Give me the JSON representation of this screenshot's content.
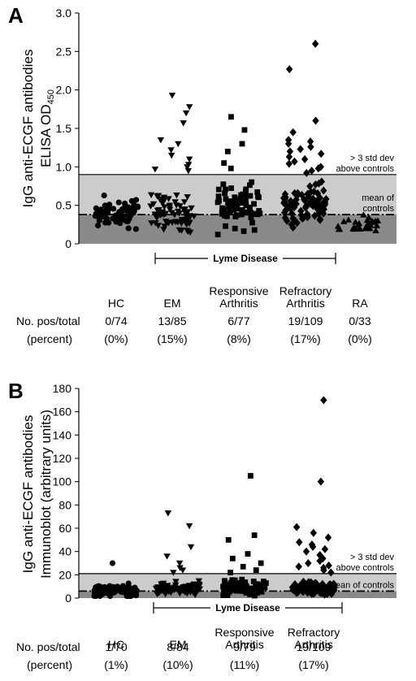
{
  "chart_data": [
    {
      "type": "scatter",
      "panel": "A",
      "ylabel": "IgG anti-ECGF antibodies",
      "ylabel2": "ELISA OD",
      "ylabel2_sub": "450",
      "ylim": [
        0,
        3.0
      ],
      "yticks": [
        "0",
        "0.5",
        "1.0",
        "1.5",
        "2.0",
        "2.5",
        "3.0"
      ],
      "ytick_values": [
        0,
        0.5,
        1.0,
        1.5,
        2.0,
        2.5,
        3.0
      ],
      "threshold": 0.9,
      "mean": 0.38,
      "threshold_label": [
        "> 3 std dev",
        "above controls"
      ],
      "mean_label": [
        "mean of",
        "controls"
      ],
      "group_bracket_label": "Lyme Disease",
      "row_labels": [
        "No. pos/total",
        "(percent)"
      ],
      "groups": [
        {
          "name": [
            "HC"
          ],
          "marker": "circle",
          "pos_total": "0/74",
          "percent": "(0%)",
          "n": 74,
          "center": 0.39,
          "spread": 0.2,
          "max": 0.86,
          "outliers": []
        },
        {
          "name": [
            "EM"
          ],
          "marker": "triangle-down",
          "pos_total": "13/85",
          "percent": "(15%)",
          "n": 85,
          "center": 0.4,
          "spread": 0.22,
          "max": 0.95,
          "outliers": [
            1.93,
            1.78,
            1.7,
            1.57,
            1.35,
            1.3,
            1.22,
            1.15,
            1.1,
            1.03,
            1.0,
            0.97,
            0.95
          ]
        },
        {
          "name": [
            "Responsive",
            "Arthritis"
          ],
          "marker": "square",
          "pos_total": "6/77",
          "percent": "(8%)",
          "n": 77,
          "center": 0.5,
          "spread": 0.25,
          "max": 0.95,
          "outliers": [
            1.65,
            1.48,
            1.3,
            1.2,
            1.05,
            0.98
          ]
        },
        {
          "name": [
            "Refractory",
            "Arthritis"
          ],
          "marker": "diamond",
          "pos_total": "19/109",
          "percent": "(17%)",
          "n": 109,
          "center": 0.5,
          "spread": 0.22,
          "max": 0.9,
          "outliers": [
            2.6,
            2.27,
            1.6,
            1.45,
            1.35,
            1.33,
            1.3,
            1.26,
            1.23,
            1.2,
            1.17,
            1.13,
            1.1,
            1.07,
            1.04,
            1.0,
            0.98,
            0.95,
            0.92
          ]
        },
        {
          "name": [
            "RA"
          ],
          "marker": "triangle-up",
          "pos_total": "0/33",
          "percent": "(0%)",
          "n": 33,
          "center": 0.25,
          "spread": 0.1,
          "max": 0.5,
          "outliers": []
        }
      ]
    },
    {
      "type": "scatter",
      "panel": "B",
      "ylabel": "IgG anti-ECGF antibodies",
      "ylabel2": "Immunoblot (arbitrary units)",
      "ylabel2_sub": "",
      "ylim": [
        0,
        180
      ],
      "yticks": [
        "0",
        "20",
        "40",
        "60",
        "80",
        "100",
        "120",
        "140",
        "160",
        "180"
      ],
      "ytick_values": [
        0,
        20,
        40,
        60,
        80,
        100,
        120,
        140,
        160,
        180
      ],
      "threshold": 21,
      "mean": 6,
      "threshold_label": [
        "> 3 std dev",
        "above controls"
      ],
      "mean_label": [
        "mean of controls"
      ],
      "group_bracket_label": "Lyme Disease",
      "row_labels": [
        "No. pos/total",
        "(percent)"
      ],
      "groups": [
        {
          "name": [
            "HC"
          ],
          "marker": "circle",
          "pos_total": "1/70",
          "percent": "(1%)",
          "n": 70,
          "center": 6,
          "spread": 5,
          "max": 20,
          "outliers": [
            30
          ]
        },
        {
          "name": [
            "EM"
          ],
          "marker": "triangle-down",
          "pos_total": "8/84",
          "percent": "(10%)",
          "n": 84,
          "center": 8,
          "spread": 5,
          "max": 20,
          "outliers": [
            73,
            62,
            44,
            36,
            30,
            26,
            24,
            22
          ]
        },
        {
          "name": [
            "Responsive",
            "Arthritis"
          ],
          "marker": "square",
          "pos_total": "9/79",
          "percent": "(11%)",
          "n": 79,
          "center": 9,
          "spread": 6,
          "max": 20,
          "outliers": [
            105,
            54,
            50,
            38,
            34,
            30,
            27,
            24,
            22
          ]
        },
        {
          "name": [
            "Refractory",
            "Arthritis"
          ],
          "marker": "diamond",
          "pos_total": "19/109",
          "percent": "(17%)",
          "n": 109,
          "center": 8,
          "spread": 5,
          "max": 20,
          "outliers": [
            170,
            100,
            61,
            56,
            52,
            48,
            46,
            44,
            42,
            40,
            37,
            34,
            32,
            30,
            28,
            27,
            26,
            24,
            22
          ]
        }
      ]
    }
  ]
}
